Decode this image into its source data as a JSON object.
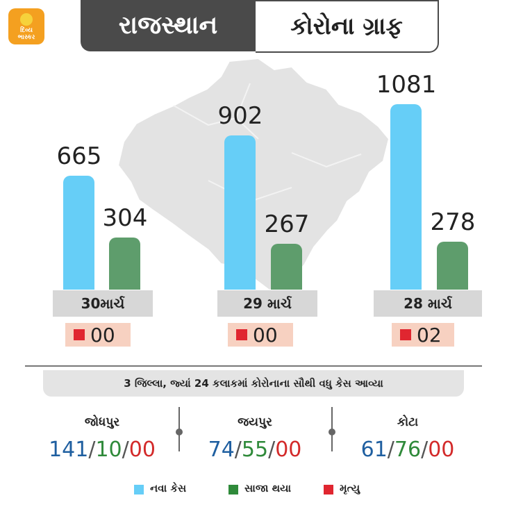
{
  "header": {
    "logo_line1": "દિવ્ય",
    "logo_line2": "ભાસ્કર",
    "region": "રાજસ્થાન",
    "title": "કોરોના ગ્રાફ"
  },
  "colors": {
    "new_cases": "#66cef7",
    "recovered": "#5e9d6c",
    "deaths": "#e02630",
    "header_dark": "#4a4a4a"
  },
  "chart_data": {
    "type": "bar",
    "categories": [
      "30માર્ચ",
      "29 માર્ચ",
      "28 માર્ચ"
    ],
    "series": [
      {
        "name": "નવા કેસ",
        "values": [
          665,
          902,
          1081
        ]
      },
      {
        "name": "સાજા થયા",
        "values": [
          304,
          267,
          278
        ]
      },
      {
        "name": "મૃત્યુ",
        "values": [
          0,
          0,
          2
        ],
        "labels": [
          "00",
          "00",
          "02"
        ]
      }
    ],
    "ylim": [
      0,
      1200
    ]
  },
  "panel": {
    "caption": "3 જિલ્લા, જ્યાં 24 કલાકમાં કોરોનાના સૌથી વધુ કેસ આવ્યા",
    "districts": [
      {
        "name": "જોધપુર",
        "new": "141",
        "recovered": "10",
        "deaths": "00"
      },
      {
        "name": "જયપુર",
        "new": "74",
        "recovered": "55",
        "deaths": "00"
      },
      {
        "name": "કોટા",
        "new": "61",
        "recovered": "76",
        "deaths": "00"
      }
    ],
    "separator": "/"
  },
  "legend": [
    {
      "label": "નવા કેસ",
      "color": "#66cef7"
    },
    {
      "label": "સાજા થયા",
      "color": "#2f8a3a"
    },
    {
      "label": "મૃત્યુ",
      "color": "#e02630"
    }
  ]
}
